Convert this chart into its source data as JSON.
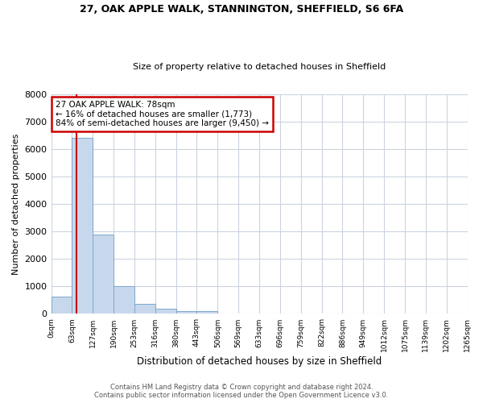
{
  "title1": "27, OAK APPLE WALK, STANNINGTON, SHEFFIELD, S6 6FA",
  "title2": "Size of property relative to detached houses in Sheffield",
  "xlabel": "Distribution of detached houses by size in Sheffield",
  "ylabel": "Number of detached properties",
  "bar_values": [
    620,
    6400,
    2900,
    1000,
    370,
    175,
    110,
    100,
    0,
    0,
    0,
    0,
    0,
    0,
    0,
    0,
    0,
    0,
    0,
    0
  ],
  "bar_labels": [
    "0sqm",
    "63sqm",
    "127sqm",
    "190sqm",
    "253sqm",
    "316sqm",
    "380sqm",
    "443sqm",
    "506sqm",
    "569sqm",
    "633sqm",
    "696sqm",
    "759sqm",
    "822sqm",
    "886sqm",
    "949sqm",
    "1012sqm",
    "1075sqm",
    "1139sqm",
    "1202sqm",
    "1265sqm"
  ],
  "bar_color": "#c8d8ec",
  "bar_edgecolor": "#7ba7cc",
  "vline_color": "#cc0000",
  "vline_x": 1.23,
  "annotation_title": "27 OAK APPLE WALK: 78sqm",
  "annotation_line1": "← 16% of detached houses are smaller (1,773)",
  "annotation_line2": "84% of semi-detached houses are larger (9,450) →",
  "annotation_box_color": "#cc0000",
  "ylim": [
    0,
    8000
  ],
  "yticks": [
    0,
    1000,
    2000,
    3000,
    4000,
    5000,
    6000,
    7000,
    8000
  ],
  "grid_color": "#ccd4e0",
  "footer1": "Contains HM Land Registry data © Crown copyright and database right 2024.",
  "footer2": "Contains public sector information licensed under the Open Government Licence v3.0.",
  "background_color": "#ffffff"
}
